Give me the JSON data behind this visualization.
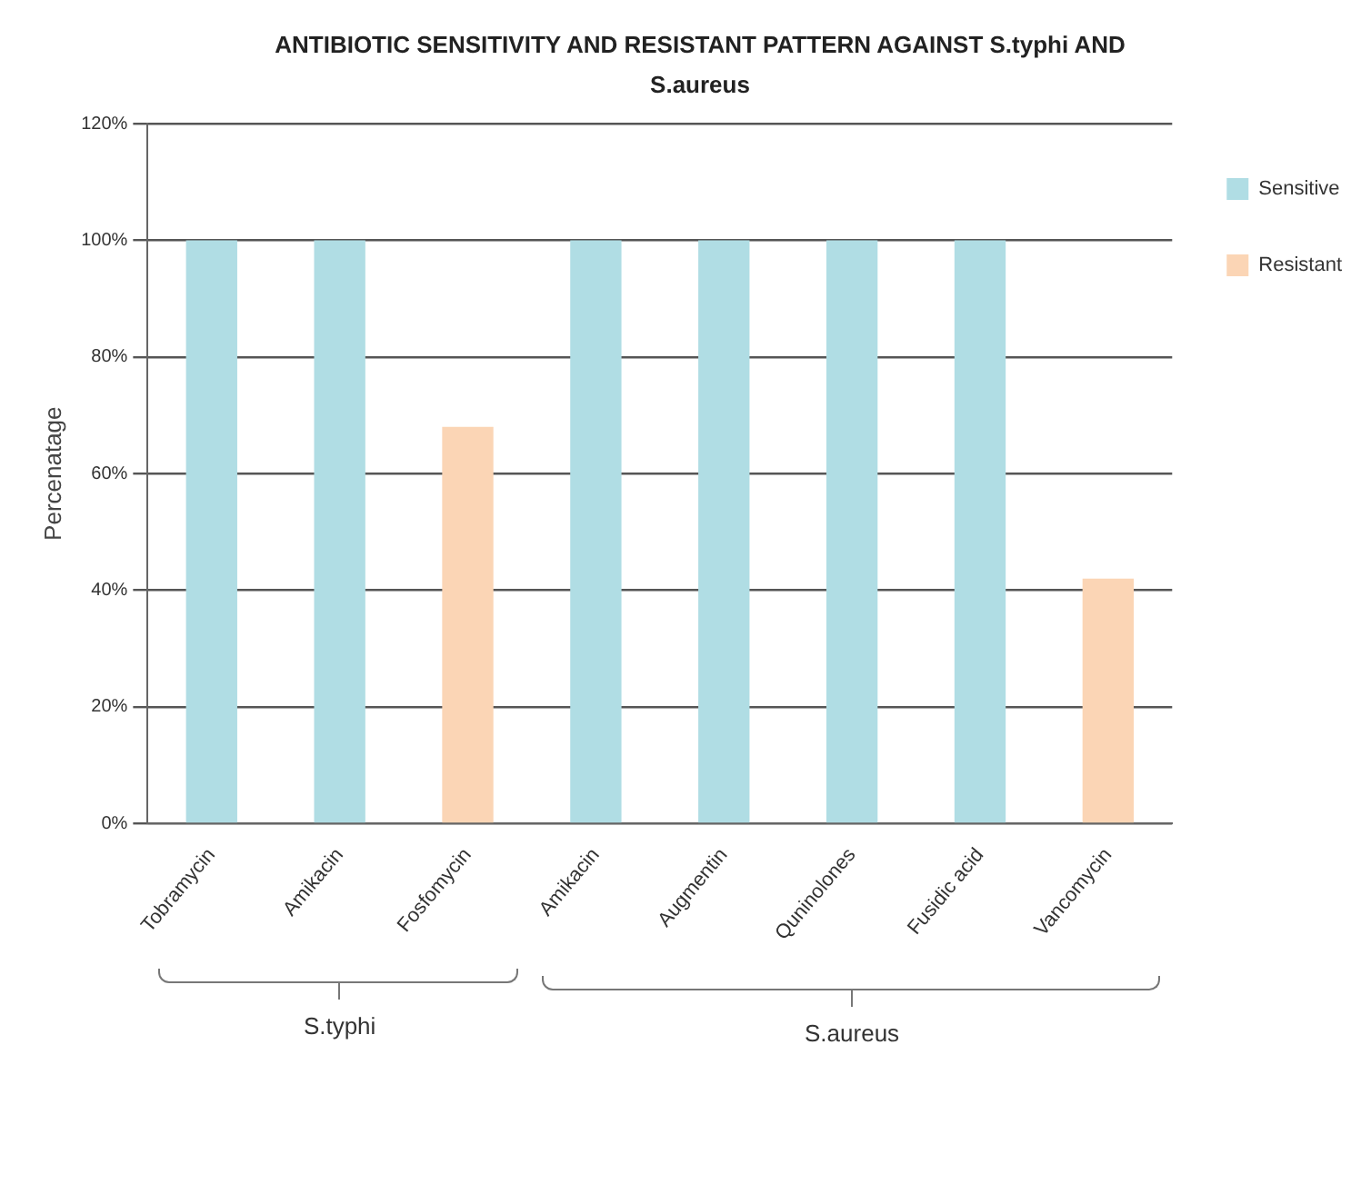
{
  "chart_data": {
    "type": "bar",
    "title": "ANTIBIOTIC SENSITIVITY AND RESISTANT PATTERN AGAINST S.typhi AND S.aureus",
    "ylabel": "Percenatage",
    "categories": [
      "Tobramycin",
      "Amikacin",
      "Fosfomycin",
      "Amikacin",
      "Augmentin",
      "Quninolones",
      "Fusidic acid",
      "Vancomycin"
    ],
    "series": [
      {
        "name": "Sensitive",
        "color": "#b0dde4",
        "values": [
          100,
          100,
          null,
          100,
          100,
          100,
          100,
          null
        ]
      },
      {
        "name": "Resistant",
        "color": "#fbd5b5",
        "values": [
          null,
          null,
          68,
          null,
          null,
          null,
          null,
          42
        ]
      }
    ],
    "ylim": [
      0,
      120
    ],
    "yticks": [
      {
        "value": 0,
        "label": "0%"
      },
      {
        "value": 20,
        "label": "20%"
      },
      {
        "value": 40,
        "label": "40%"
      },
      {
        "value": 60,
        "label": "60%"
      },
      {
        "value": 80,
        "label": "80%"
      },
      {
        "value": 100,
        "label": "100%"
      },
      {
        "value": 120,
        "label": "120%"
      }
    ],
    "grid": "y",
    "legend": "right",
    "annotations": [
      "S.typhi",
      "S.aureus"
    ]
  }
}
